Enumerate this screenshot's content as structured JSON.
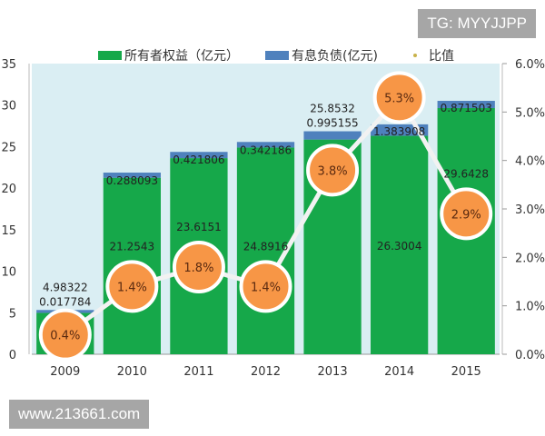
{
  "chart_data": {
    "type": "bar",
    "categories": [
      "2009",
      "2010",
      "2011",
      "2012",
      "2013",
      "2014",
      "2015"
    ],
    "series": [
      {
        "name": "所有者权益（亿元）",
        "type": "stacked-bar",
        "color": "#16a84a",
        "values": [
          4.98322,
          21.2543,
          23.6151,
          24.8916,
          25.8532,
          26.3004,
          29.6428
        ],
        "labels": [
          "4.98322",
          "21.2543",
          "23.6151",
          "24.8916",
          "25.8532",
          "26.3004",
          "29.6428"
        ]
      },
      {
        "name": "有息负债(亿元)",
        "type": "stacked-bar",
        "color": "#4f81bd",
        "values": [
          0.017784,
          0.288093,
          0.421806,
          0.342186,
          0.995155,
          1.383908,
          0.871503
        ],
        "labels": [
          "0.017784",
          "0.288093",
          "0.421806",
          "0.342186",
          "0.995155",
          "1.383908",
          "0.871503"
        ]
      },
      {
        "name": "比值",
        "type": "line",
        "axis": "right",
        "color": "#f79646",
        "values": [
          0.4,
          1.4,
          1.8,
          1.4,
          3.8,
          5.3,
          2.9
        ],
        "labels": [
          "0.4%",
          "1.4%",
          "1.8%",
          "1.4%",
          "3.8%",
          "5.3%",
          "2.9%"
        ]
      }
    ],
    "ylim": [
      0,
      35
    ],
    "yticks": [
      "0",
      "5",
      "10",
      "15",
      "20",
      "25",
      "30",
      "35"
    ],
    "y2lim": [
      0,
      6
    ],
    "y2ticks": [
      "0.0%",
      "1.0%",
      "2.0%",
      "3.0%",
      "4.0%",
      "5.0%",
      "6.0%"
    ],
    "legend": "top",
    "grid": false,
    "plot_background": "#daeef3"
  },
  "watermarks": {
    "top": "TG: MYYJJPP",
    "bottom": "www.213661.com"
  }
}
